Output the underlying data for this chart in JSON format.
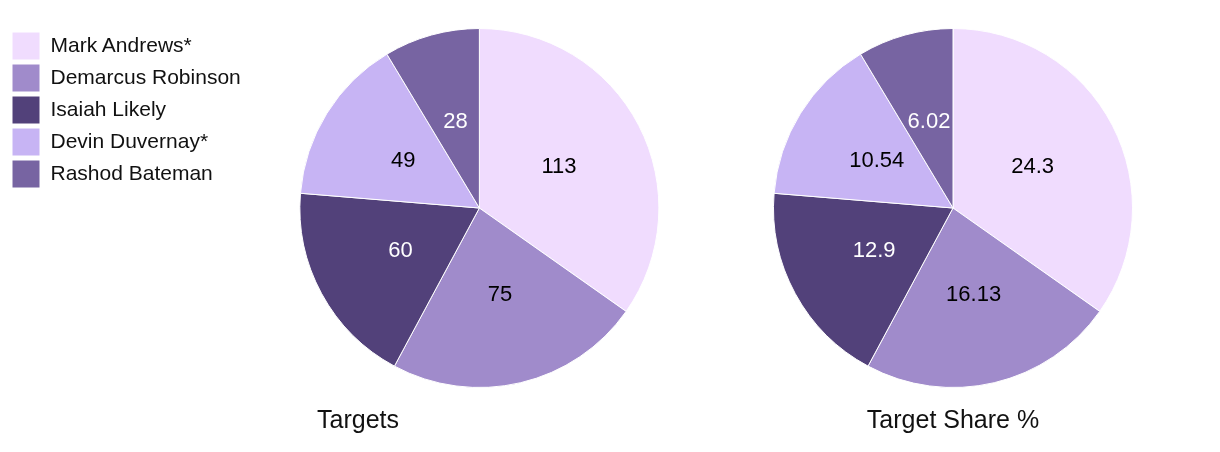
{
  "chart_data": [
    {
      "type": "pie",
      "title": "Targets",
      "categories": [
        "Mark Andrews*",
        "Demarcus Robinson",
        "Isaiah Likely",
        "Devin Duvernay*",
        "Rashod Bateman"
      ],
      "values": [
        113,
        75,
        60,
        49,
        28
      ],
      "colors": [
        "#f0dcfe",
        "#a08bcb",
        "#52417a",
        "#c7b4f4",
        "#7764a2"
      ],
      "data_labels": true,
      "legend": "left"
    },
    {
      "type": "pie",
      "title": "Target Share %",
      "categories": [
        null,
        null,
        null,
        null,
        null
      ],
      "values": [
        24.3,
        16.13,
        12.9,
        10.54,
        6.02
      ],
      "colors": [
        "#f0dcfe",
        "#a08bcb",
        "#52417a",
        "#c7b4f4",
        "#7764a2"
      ],
      "data_labels": true
    }
  ]
}
